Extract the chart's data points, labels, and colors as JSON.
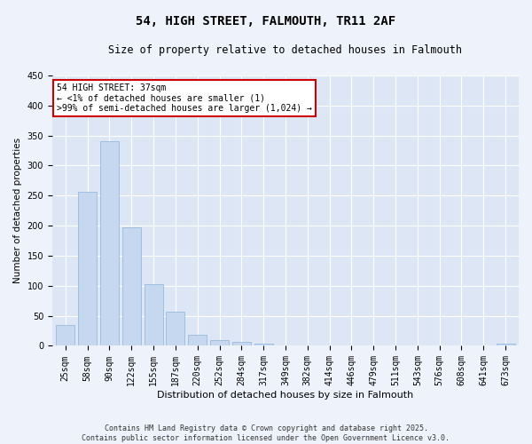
{
  "title": "54, HIGH STREET, FALMOUTH, TR11 2AF",
  "subtitle": "Size of property relative to detached houses in Falmouth",
  "xlabel": "Distribution of detached houses by size in Falmouth",
  "ylabel": "Number of detached properties",
  "bar_color": "#c5d8f0",
  "bar_edge_color": "#8ab4d8",
  "categories": [
    "25sqm",
    "58sqm",
    "90sqm",
    "122sqm",
    "155sqm",
    "187sqm",
    "220sqm",
    "252sqm",
    "284sqm",
    "317sqm",
    "349sqm",
    "382sqm",
    "414sqm",
    "446sqm",
    "479sqm",
    "511sqm",
    "543sqm",
    "576sqm",
    "608sqm",
    "641sqm",
    "673sqm"
  ],
  "values": [
    35,
    256,
    340,
    198,
    103,
    57,
    19,
    10,
    7,
    3,
    1,
    0,
    0,
    1,
    0,
    0,
    0,
    0,
    0,
    0,
    3
  ],
  "ylim": [
    0,
    450
  ],
  "yticks": [
    0,
    50,
    100,
    150,
    200,
    250,
    300,
    350,
    400,
    450
  ],
  "annotation_text": "54 HIGH STREET: 37sqm\n← <1% of detached houses are smaller (1)\n>99% of semi-detached houses are larger (1,024) →",
  "annotation_box_color": "#ffffff",
  "annotation_box_edge_color": "#cc0000",
  "footer_line1": "Contains HM Land Registry data © Crown copyright and database right 2025.",
  "footer_line2": "Contains public sector information licensed under the Open Government Licence v3.0.",
  "bg_color": "#eef2fb",
  "plot_bg_color": "#dde6f5",
  "grid_color": "#ffffff",
  "title_fontsize": 10,
  "subtitle_fontsize": 8.5,
  "xlabel_fontsize": 8,
  "ylabel_fontsize": 7.5,
  "tick_fontsize": 7,
  "annotation_fontsize": 7,
  "footer_fontsize": 6
}
